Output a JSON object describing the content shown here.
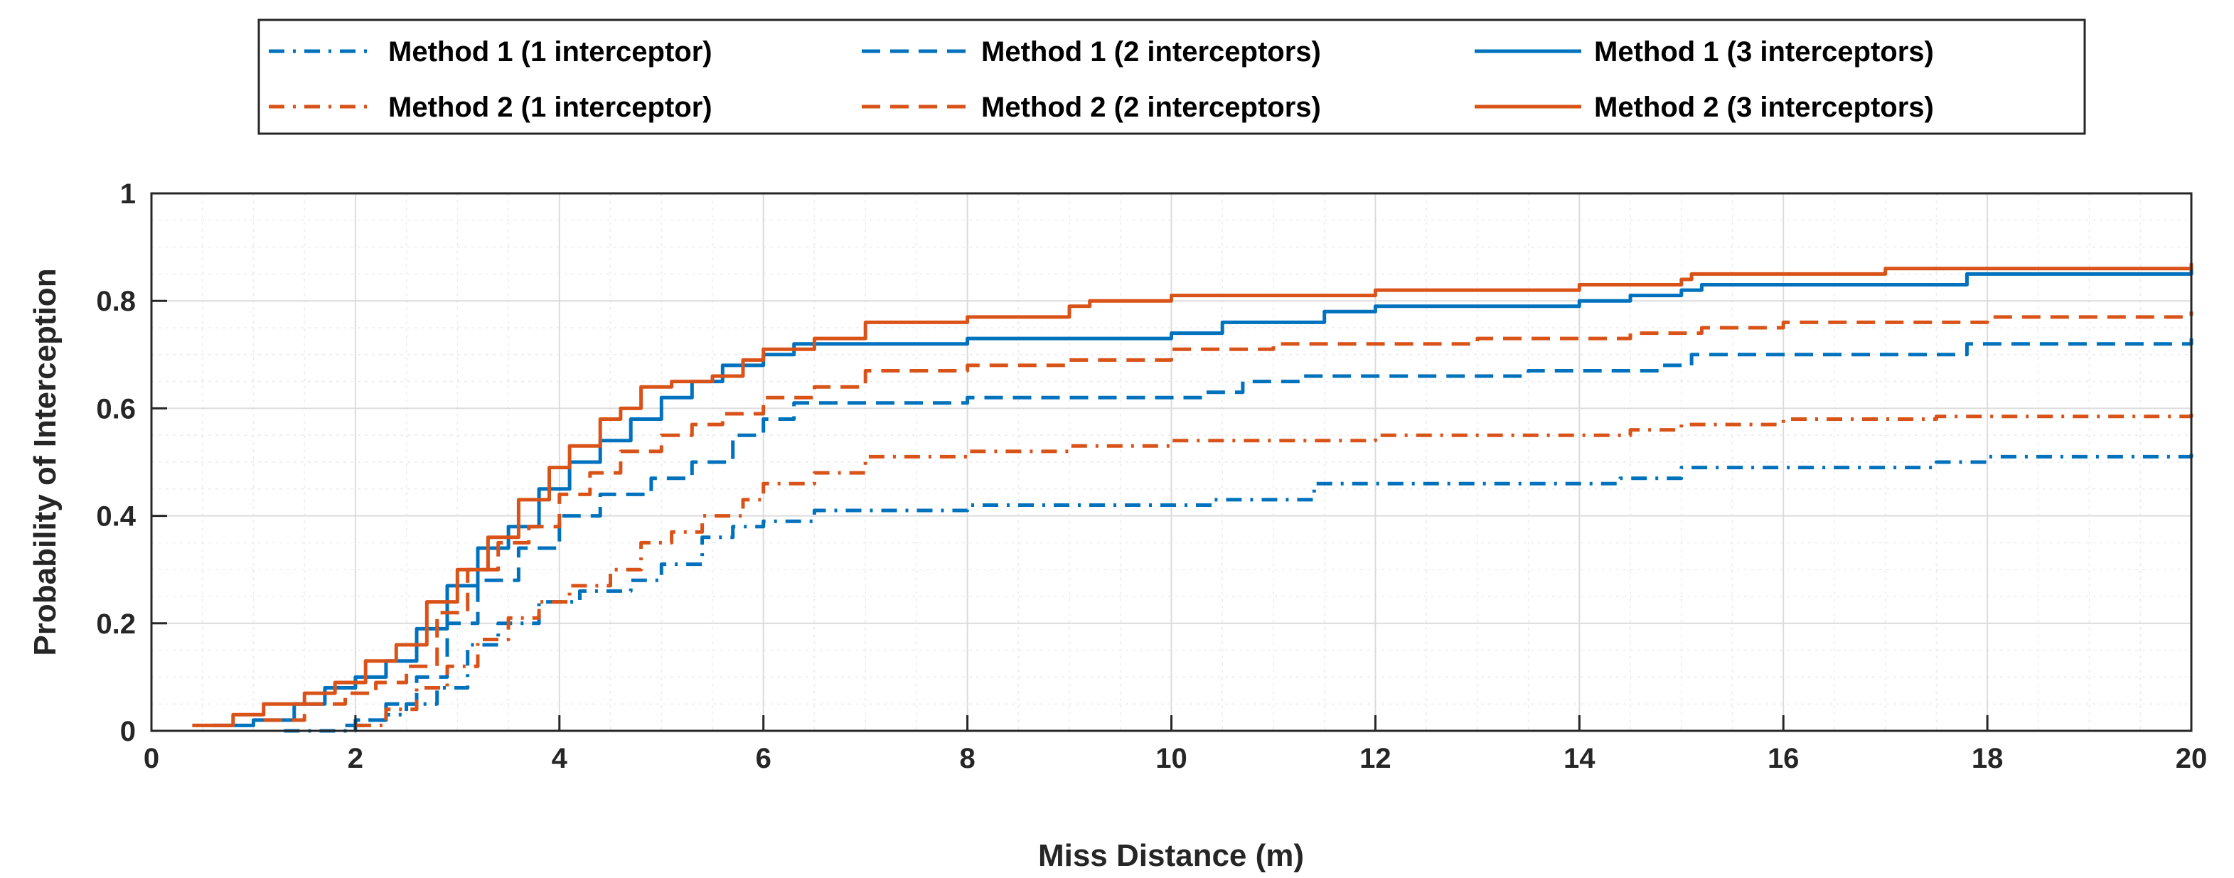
{
  "chart_data": {
    "type": "line",
    "title": "",
    "xlabel": "Miss Distance (m)",
    "ylabel": "Probability of Interception",
    "xlim": [
      0,
      20
    ],
    "ylim": [
      0,
      1
    ],
    "xticks": [
      0,
      2,
      4,
      6,
      8,
      10,
      12,
      14,
      16,
      18,
      20
    ],
    "yticks": [
      0,
      0.2,
      0.4,
      0.6,
      0.8,
      1
    ],
    "xtick_labels": [
      "0",
      "2",
      "4",
      "6",
      "8",
      "10",
      "12",
      "14",
      "16",
      "18",
      "20"
    ],
    "ytick_labels": [
      "0",
      "0.2",
      "0.4",
      "0.6",
      "0.8",
      "1"
    ],
    "grid": true,
    "minor_grid": true,
    "legend_position": "top-center",
    "colors": {
      "method1": "#0072BD",
      "method2": "#D95319",
      "grid": "#dcdcdc",
      "axis": "#262626"
    },
    "series": [
      {
        "name": "Method 1 (1 interceptor)",
        "color": "#0072BD",
        "style": "dashdot",
        "x": [
          1.3,
          2.0,
          2.3,
          2.5,
          2.8,
          3.1,
          3.4,
          3.8,
          4.2,
          4.7,
          5.0,
          5.4,
          5.7,
          6.0,
          6.5,
          8.0,
          10.4,
          11.4,
          14.4,
          15.0,
          17.5,
          18.0,
          20.0
        ],
        "y": [
          0.0,
          0.02,
          0.03,
          0.05,
          0.08,
          0.16,
          0.2,
          0.24,
          0.26,
          0.28,
          0.31,
          0.36,
          0.38,
          0.39,
          0.41,
          0.42,
          0.43,
          0.46,
          0.47,
          0.49,
          0.5,
          0.51,
          0.52
        ]
      },
      {
        "name": "Method 1 (2 interceptors)",
        "color": "#0072BD",
        "style": "dashed",
        "x": [
          1.9,
          2.1,
          2.3,
          2.6,
          2.9,
          3.2,
          3.6,
          4.0,
          4.4,
          4.9,
          5.3,
          5.7,
          6.0,
          6.3,
          8.0,
          10.3,
          10.7,
          11.3,
          13.5,
          14.8,
          15.1,
          17.8,
          20.0
        ],
        "y": [
          0.01,
          0.02,
          0.05,
          0.1,
          0.2,
          0.28,
          0.34,
          0.4,
          0.44,
          0.47,
          0.5,
          0.55,
          0.58,
          0.61,
          0.62,
          0.63,
          0.65,
          0.66,
          0.67,
          0.68,
          0.7,
          0.72,
          0.73
        ]
      },
      {
        "name": "Method 1 (3 interceptors)",
        "color": "#0072BD",
        "style": "solid",
        "x": [
          0.6,
          1.0,
          1.4,
          1.7,
          2.0,
          2.3,
          2.6,
          2.9,
          3.2,
          3.5,
          3.8,
          4.1,
          4.4,
          4.7,
          5.0,
          5.3,
          5.6,
          6.0,
          6.3,
          7.0,
          8.0,
          9.0,
          10.0,
          10.5,
          11.5,
          12.0,
          14.0,
          14.5,
          15.0,
          15.2,
          17.8,
          20.0
        ],
        "y": [
          0.01,
          0.02,
          0.05,
          0.08,
          0.1,
          0.13,
          0.19,
          0.27,
          0.34,
          0.38,
          0.45,
          0.5,
          0.54,
          0.58,
          0.62,
          0.65,
          0.68,
          0.7,
          0.72,
          0.72,
          0.73,
          0.73,
          0.74,
          0.76,
          0.78,
          0.79,
          0.8,
          0.81,
          0.82,
          0.83,
          0.85,
          0.86
        ]
      },
      {
        "name": "Method 2 (1 interceptor)",
        "color": "#D95319",
        "style": "dashdot",
        "x": [
          2.0,
          2.3,
          2.6,
          2.9,
          3.2,
          3.5,
          3.8,
          4.1,
          4.5,
          4.8,
          5.1,
          5.4,
          5.8,
          6.0,
          6.5,
          7.0,
          8.0,
          9.0,
          10.0,
          12.0,
          14.5,
          15.0,
          16.0,
          17.5,
          20.0
        ],
        "y": [
          0.01,
          0.04,
          0.08,
          0.12,
          0.17,
          0.21,
          0.24,
          0.27,
          0.3,
          0.35,
          0.37,
          0.4,
          0.43,
          0.46,
          0.48,
          0.51,
          0.52,
          0.53,
          0.54,
          0.55,
          0.56,
          0.57,
          0.58,
          0.585,
          0.59
        ]
      },
      {
        "name": "Method 2 (2 interceptors)",
        "color": "#D95319",
        "style": "dashed",
        "x": [
          1.1,
          1.5,
          1.9,
          2.2,
          2.5,
          2.8,
          3.1,
          3.4,
          3.7,
          4.0,
          4.3,
          4.6,
          5.0,
          5.3,
          5.6,
          6.0,
          6.5,
          7.0,
          8.0,
          9.0,
          10.0,
          11.0,
          13.0,
          14.5,
          15.2,
          16.0,
          18.0,
          20.0
        ],
        "y": [
          0.02,
          0.05,
          0.07,
          0.09,
          0.12,
          0.22,
          0.3,
          0.35,
          0.38,
          0.44,
          0.48,
          0.52,
          0.55,
          0.57,
          0.59,
          0.62,
          0.64,
          0.67,
          0.68,
          0.69,
          0.71,
          0.72,
          0.73,
          0.74,
          0.75,
          0.76,
          0.77,
          0.78
        ]
      },
      {
        "name": "Method 2 (3 interceptors)",
        "color": "#D95319",
        "style": "solid",
        "x": [
          0.4,
          0.8,
          1.1,
          1.5,
          1.8,
          2.1,
          2.4,
          2.7,
          3.0,
          3.3,
          3.6,
          3.9,
          4.1,
          4.4,
          4.6,
          4.8,
          5.1,
          5.5,
          5.8,
          6.0,
          6.5,
          7.0,
          8.0,
          9.0,
          9.2,
          10.0,
          12.0,
          14.0,
          15.0,
          15.1,
          17.0,
          20.0
        ],
        "y": [
          0.01,
          0.03,
          0.05,
          0.07,
          0.09,
          0.13,
          0.16,
          0.24,
          0.3,
          0.36,
          0.43,
          0.49,
          0.53,
          0.58,
          0.6,
          0.64,
          0.65,
          0.66,
          0.69,
          0.71,
          0.73,
          0.76,
          0.77,
          0.79,
          0.8,
          0.81,
          0.82,
          0.83,
          0.84,
          0.85,
          0.86,
          0.87
        ]
      }
    ]
  }
}
